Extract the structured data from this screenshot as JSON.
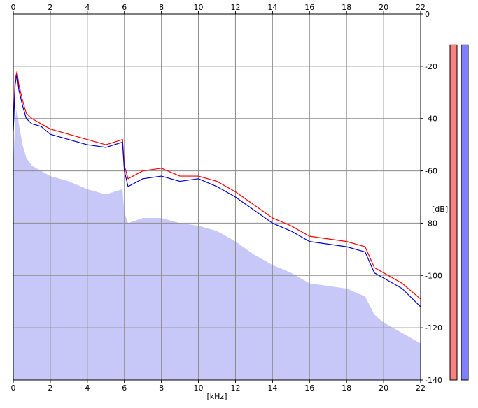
{
  "chart_data": {
    "type": "area",
    "xlabel": "[kHz]",
    "ylabel": "[dB]",
    "xlim": [
      0,
      22
    ],
    "ylim": [
      -140,
      0
    ],
    "x_ticks": [
      0,
      2,
      4,
      6,
      8,
      10,
      12,
      14,
      16,
      18,
      20,
      22
    ],
    "y_ticks": [
      0,
      -20,
      -40,
      -60,
      -80,
      -100,
      -120,
      -140
    ],
    "x_tick_labels": [
      "0",
      "2",
      "4",
      "6",
      "8",
      "10",
      "12",
      "14",
      "16",
      "18",
      "20",
      "22"
    ],
    "y_tick_labels": [
      "0",
      "-20",
      "-40",
      "-60",
      "-80",
      "-100",
      "-120",
      "-140"
    ],
    "grid": true,
    "series": [
      {
        "color": "#ff0000",
        "x": [
          0,
          0.1,
          0.2,
          0.3,
          0.5,
          0.7,
          1,
          1.5,
          2,
          3,
          4,
          5,
          5.9,
          6,
          6.2,
          7,
          8,
          9,
          10,
          11,
          12,
          13,
          14,
          15,
          16,
          17,
          18,
          19,
          19.5,
          20,
          21,
          22
        ],
        "values": [
          -42,
          -25,
          -22,
          -27,
          -33,
          -38,
          -40,
          -42,
          -44,
          -46,
          -48,
          -50,
          -48,
          -58,
          -63,
          -60,
          -59,
          -62,
          -62,
          -64,
          -68,
          -73,
          -78,
          -81,
          -85,
          -86,
          -87,
          -89,
          -97,
          -99,
          -103,
          -109
        ]
      },
      {
        "color": "#0000cc",
        "x": [
          0,
          0.1,
          0.2,
          0.3,
          0.5,
          0.7,
          1,
          1.5,
          2,
          3,
          4,
          5,
          5.9,
          6,
          6.2,
          7,
          8,
          9,
          10,
          11,
          12,
          13,
          14,
          15,
          16,
          17,
          18,
          19,
          19.5,
          20,
          21,
          22
        ],
        "values": [
          -45,
          -27,
          -23,
          -29,
          -35,
          -40,
          -42,
          -43,
          -46,
          -48,
          -50,
          -51,
          -49,
          -60,
          -66,
          -63,
          -62,
          -64,
          -63,
          -66,
          -70,
          -75,
          -80,
          -83,
          -87,
          -88,
          -89,
          -91,
          -99,
          -101,
          -105,
          -112
        ]
      },
      {
        "color": "#c8c8f8",
        "x": [
          0,
          0.1,
          0.2,
          0.3,
          0.5,
          0.7,
          1,
          1.5,
          2,
          3,
          4,
          5,
          5.9,
          6,
          6.2,
          7,
          8,
          9,
          10,
          11,
          12,
          13,
          14,
          15,
          16,
          17,
          18,
          19,
          19.5,
          20,
          21,
          22
        ],
        "values": [
          -58,
          -40,
          -36,
          -42,
          -50,
          -55,
          -58,
          -60,
          -62,
          -64,
          -67,
          -69,
          -67,
          -76,
          -80,
          -78,
          -78,
          -80,
          -81,
          -83,
          -87,
          -92,
          -96,
          -99,
          -103,
          -104,
          -105,
          -108,
          -115,
          -118,
          -122,
          -126
        ]
      }
    ],
    "level_meters": [
      {
        "color": "#ff8080",
        "value": 0.985
      },
      {
        "color": "#8080ff",
        "value": 0.985
      }
    ]
  }
}
